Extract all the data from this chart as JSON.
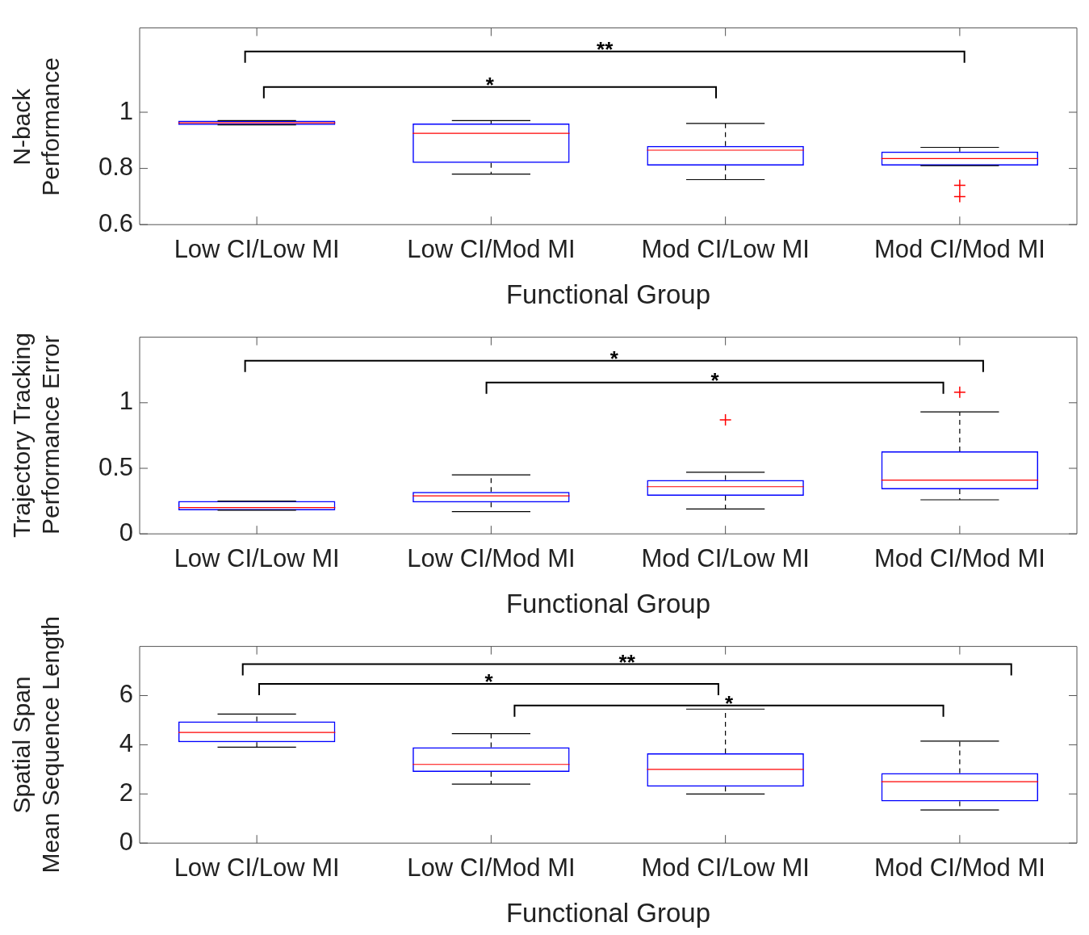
{
  "chart_data": [
    {
      "type": "box",
      "xlabel": "Functional Group",
      "ylabel": "N-back\nPerformance",
      "categories": [
        "Low CI/Low MI",
        "Low CI/Mod MI",
        "Mod CI/Low MI",
        "Mod CI/Mod MI"
      ],
      "ylim": [
        0.6,
        1.3
      ],
      "yticks": [
        0.6,
        0.8,
        1
      ],
      "grid": false,
      "legend": false,
      "annotations": [
        "**",
        "*"
      ],
      "series": [
        {
          "color": "#0000ff",
          "boxes": [
            {
              "low": 0.955,
              "q1": 0.955,
              "median": 0.962,
              "q3": 0.97,
              "high": 0.97
            },
            {
              "low": 0.78,
              "q1": 0.82,
              "median": 0.925,
              "q3": 0.96,
              "high": 0.97
            },
            {
              "low": 0.76,
              "q1": 0.81,
              "median": 0.865,
              "q3": 0.88,
              "high": 0.96
            },
            {
              "low": 0.81,
              "q1": 0.81,
              "median": 0.835,
              "q3": 0.86,
              "high": 0.875,
              "outliers": [
                0.74,
                0.7
              ]
            }
          ]
        }
      ]
    },
    {
      "type": "box",
      "xlabel": "Functional Group",
      "ylabel": "Trajectory Tracking\nPerformance Error",
      "categories": [
        "Low CI/Low MI",
        "Low CI/Mod MI",
        "Mod CI/Low MI",
        "Mod CI/Mod MI"
      ],
      "ylim": [
        0,
        1.5
      ],
      "yticks": [
        0,
        0.5,
        1
      ],
      "grid": false,
      "legend": false,
      "annotations": [
        "*",
        "*"
      ],
      "series": [
        {
          "color": "#0000ff",
          "boxes": [
            {
              "low": 0.18,
              "q1": 0.18,
              "median": 0.2,
              "q3": 0.25,
              "high": 0.25
            },
            {
              "low": 0.17,
              "q1": 0.24,
              "median": 0.29,
              "q3": 0.32,
              "high": 0.45
            },
            {
              "low": 0.19,
              "q1": 0.29,
              "median": 0.36,
              "q3": 0.41,
              "high": 0.47,
              "outliers": [
                0.87
              ]
            },
            {
              "low": 0.26,
              "q1": 0.34,
              "median": 0.41,
              "q3": 0.63,
              "high": 0.93,
              "outliers": [
                1.08
              ]
            }
          ]
        }
      ]
    },
    {
      "type": "box",
      "xlabel": "Functional Group",
      "ylabel": "Spatial Span\nMean Sequence Length",
      "categories": [
        "Low CI/Low MI",
        "Low CI/Mod MI",
        "Mod CI/Low MI",
        "Mod CI/Mod MI"
      ],
      "ylim": [
        0,
        8
      ],
      "yticks": [
        0,
        2,
        4,
        6
      ],
      "grid": false,
      "legend": false,
      "annotations": [
        "**",
        "*",
        "*"
      ],
      "series": [
        {
          "color": "#0000ff",
          "boxes": [
            {
              "low": 3.9,
              "q1": 4.1,
              "median": 4.5,
              "q3": 4.95,
              "high": 5.25
            },
            {
              "low": 2.4,
              "q1": 2.9,
              "median": 3.2,
              "q3": 3.9,
              "high": 4.45
            },
            {
              "low": 2.0,
              "q1": 2.3,
              "median": 3.0,
              "q3": 3.65,
              "high": 5.45
            },
            {
              "low": 1.35,
              "q1": 1.7,
              "median": 2.5,
              "q3": 2.85,
              "high": 4.15
            }
          ]
        }
      ]
    }
  ]
}
